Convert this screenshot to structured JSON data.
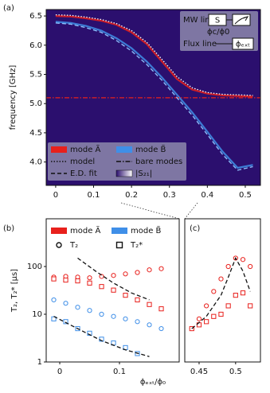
{
  "chart_data": [
    {
      "type": "line",
      "panel": "(a)",
      "ylabel": "frequency [GHz]",
      "xlim": [
        -0.025,
        0.54
      ],
      "ylim": [
        3.6,
        6.61
      ],
      "xticks": [
        0,
        0.1,
        0.2,
        0.3,
        0.4,
        0.5
      ],
      "yticks": [
        {
          "value": 4,
          "label": "4.0"
        },
        4.5,
        {
          "value": 5,
          "label": "5.0"
        },
        5.5,
        {
          "value": 6,
          "label": "6.0"
        },
        6.5
      ],
      "series": [
        {
          "color": "#e8201c",
          "style": "solid",
          "x": [
            0,
            0.04,
            0.08,
            0.12,
            0.16,
            0.2,
            0.24,
            0.28,
            0.32,
            0.36,
            0.4,
            0.44,
            0.48,
            0.52
          ],
          "values": [
            6.5,
            6.49,
            6.46,
            6.42,
            6.35,
            6.22,
            6.02,
            5.72,
            5.42,
            5.24,
            5.17,
            5.14,
            5.13,
            5.12
          ]
        },
        {
          "color": "#3f8fe8",
          "style": "solid",
          "x": [
            0,
            0.04,
            0.08,
            0.12,
            0.16,
            0.2,
            0.24,
            0.28,
            0.32,
            0.36,
            0.4,
            0.44,
            0.48,
            0.52
          ],
          "values": [
            6.4,
            6.38,
            6.33,
            6.25,
            6.12,
            5.95,
            5.72,
            5.45,
            5.15,
            4.85,
            4.52,
            4.18,
            3.9,
            3.95
          ]
        },
        {
          "color": "#e8201c",
          "style": "dashdot",
          "x": [
            -0.025,
            0.54
          ],
          "values": [
            5.1,
            5.1
          ]
        },
        {
          "color": "#ffffff",
          "style": "dotted",
          "x": [
            0,
            0.04,
            0.08,
            0.12,
            0.16,
            0.2,
            0.24,
            0.28,
            0.32,
            0.36,
            0.4,
            0.44,
            0.48,
            0.52
          ],
          "values": [
            6.52,
            6.51,
            6.48,
            6.44,
            6.37,
            6.25,
            6.05,
            5.76,
            5.46,
            5.27,
            5.19,
            5.16,
            5.15,
            5.14
          ]
        },
        {
          "color": "#8fc4ff",
          "style": "dashed",
          "x": [
            0,
            0.04,
            0.08,
            0.12,
            0.16,
            0.2,
            0.24,
            0.28,
            0.32,
            0.36,
            0.4,
            0.44,
            0.48,
            0.52
          ],
          "values": [
            6.38,
            6.36,
            6.3,
            6.22,
            6.08,
            5.9,
            5.67,
            5.4,
            5.1,
            4.8,
            4.47,
            4.13,
            3.86,
            3.92
          ]
        }
      ],
      "legend": [
        {
          "label": "mode Ã",
          "color": "#e8201c"
        },
        {
          "label": "mode B̃",
          "color": "#3f8fe8"
        },
        {
          "label": "model",
          "style": "dotted"
        },
        {
          "label": "bare modes",
          "style": "dashdot"
        },
        {
          "label": "E.D. fit",
          "style": "dashed"
        },
        {
          "label": "|S₂₁|",
          "gradient": true
        }
      ],
      "inset": {
        "mw": "MW line",
        "flux": "Flux line",
        "s": "S",
        "phic": "ϕc/ϕ0",
        "phiext": "ϕₑₓₜ"
      }
    },
    {
      "type": "scatter",
      "panel": "(b)",
      "ylabel": "T₂, T₂* [μs]",
      "xlabel": "ϕₑₓₜ/ϕ₀",
      "yscale": "log",
      "xlim": [
        -0.0227,
        0.2
      ],
      "ylim": [
        1,
        1000
      ],
      "xticks": [
        0,
        0.1
      ],
      "yticks": [
        1,
        10,
        100
      ],
      "series": [
        {
          "color": "#e8201c",
          "marker": "o",
          "x": [
            -0.01,
            0.01,
            0.03,
            0.05,
            0.07,
            0.09,
            0.11,
            0.13,
            0.15,
            0.17
          ],
          "values": [
            60,
            62,
            60,
            58,
            62,
            65,
            70,
            75,
            85,
            90
          ]
        },
        {
          "color": "#e8201c",
          "marker": "s",
          "x": [
            -0.01,
            0.01,
            0.03,
            0.05,
            0.07,
            0.09,
            0.11,
            0.13,
            0.15,
            0.17
          ],
          "values": [
            55,
            52,
            50,
            45,
            38,
            32,
            25,
            20,
            16,
            13
          ]
        },
        {
          "color": "#3f8fe8",
          "marker": "o",
          "x": [
            -0.01,
            0.01,
            0.03,
            0.05,
            0.07,
            0.09,
            0.11,
            0.13,
            0.15,
            0.17
          ],
          "values": [
            20,
            17,
            14,
            12,
            10,
            9,
            8,
            7,
            6,
            5
          ]
        },
        {
          "color": "#3f8fe8",
          "marker": "s",
          "x": [
            -0.01,
            0.01,
            0.03,
            0.05,
            0.07,
            0.09,
            0.11,
            0.13
          ],
          "values": [
            8,
            7,
            5,
            4,
            3,
            2.5,
            2,
            1.5
          ]
        },
        {
          "color": "#111111",
          "style": "dashed",
          "x": [
            0.03,
            0.06,
            0.09,
            0.12,
            0.15
          ],
          "values": [
            150,
            80,
            45,
            28,
            20
          ]
        },
        {
          "color": "#111111",
          "style": "dashed",
          "x": [
            -0.01,
            0.03,
            0.07,
            0.11,
            0.15
          ],
          "values": [
            9,
            5,
            2.8,
            1.8,
            1.3
          ]
        }
      ],
      "legend": [
        {
          "label": "mode Ã",
          "color": "#e8201c"
        },
        {
          "label": "mode B̃",
          "color": "#3f8fe8"
        },
        {
          "label": "T₂",
          "marker": "o"
        },
        {
          "label": "T₂*",
          "marker": "s"
        }
      ]
    },
    {
      "type": "scatter",
      "panel": "(c)",
      "yscale": "log",
      "xlim": [
        0.4304,
        0.534
      ],
      "ylim": [
        1,
        1000
      ],
      "xticks": [
        0.45,
        0.5
      ],
      "series": [
        {
          "color": "#e8201c",
          "marker": "o",
          "x": [
            0.44,
            0.45,
            0.46,
            0.47,
            0.48,
            0.49,
            0.5,
            0.51,
            0.52
          ],
          "values": [
            5,
            8,
            15,
            30,
            55,
            100,
            150,
            140,
            100
          ]
        },
        {
          "color": "#e8201c",
          "marker": "s",
          "x": [
            0.44,
            0.45,
            0.46,
            0.47,
            0.48,
            0.49,
            0.5,
            0.51,
            0.52
          ],
          "values": [
            5,
            6,
            7,
            9,
            10,
            15,
            25,
            28,
            15
          ]
        },
        {
          "color": "#111111",
          "style": "dashed",
          "x": [
            0.44,
            0.46,
            0.48,
            0.49,
            0.5,
            0.51,
            0.52
          ],
          "values": [
            5,
            9,
            25,
            60,
            150,
            80,
            30
          ]
        }
      ]
    }
  ]
}
